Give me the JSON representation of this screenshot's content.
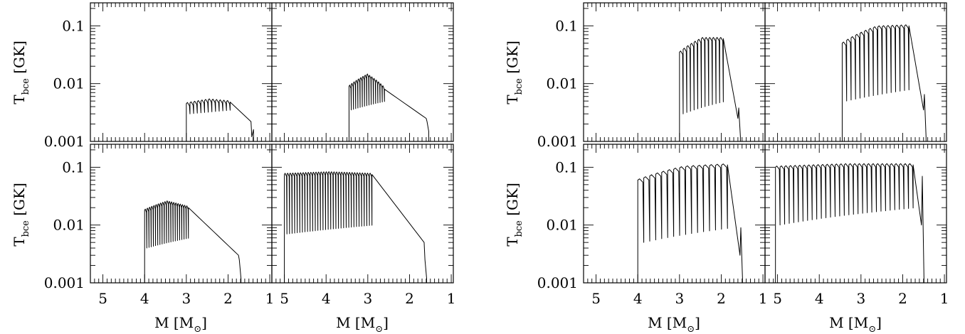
{
  "figure": {
    "y_label_main": "T",
    "y_label_sub": "bce",
    "y_label_unit": "[GK]",
    "x_label_main": "M",
    "x_label_bracket_open": "[M",
    "x_label_bracket_close": "]",
    "x_label_sub_symbol": "⊙",
    "y_tick_labels": [
      "0.1",
      "0.01",
      "0.001"
    ],
    "x_tick_labels": [
      "5",
      "4",
      "3",
      "2",
      "1"
    ],
    "line_color": "#000000"
  },
  "chart_data": [
    {
      "type": "line",
      "ylog": true,
      "ylim": [
        0.001,
        0.25
      ],
      "xlim": [
        5.3,
        0.95
      ],
      "x_reversed": true,
      "start": 3.0,
      "pulses": 12,
      "mid": 1.95,
      "end": 1.45,
      "peak": [
        0.0045,
        0.0052,
        0.0048
      ],
      "floor": [
        0.003,
        0.0035
      ],
      "valley": [
        0.0022,
        0.0016
      ],
      "tail_peak": 0.0012
    },
    {
      "type": "line",
      "ylog": true,
      "ylim": [
        0.001,
        0.25
      ],
      "xlim": [
        5.3,
        0.95
      ],
      "x_reversed": true,
      "start": 3.45,
      "pulses": 16,
      "mid": 2.6,
      "end": 1.6,
      "peak": [
        0.009,
        0.014,
        0.008
      ],
      "floor": [
        0.0035,
        0.005
      ],
      "valley": [
        0.0025,
        0.0015
      ],
      "tail_peak": 0.0022
    },
    {
      "type": "line",
      "ylog": true,
      "ylim": [
        0.001,
        0.25
      ],
      "xlim": [
        5.3,
        0.95
      ],
      "x_reversed": true,
      "start": 3.0,
      "pulses": 12,
      "mid": 1.95,
      "end": 1.6,
      "peak": [
        0.035,
        0.06,
        0.06
      ],
      "floor": [
        0.003,
        0.005
      ],
      "valley": [
        0.0025,
        0.0012
      ],
      "tail_peak": 0.0038
    },
    {
      "type": "line",
      "ylog": true,
      "ylim": [
        0.001,
        0.25
      ],
      "xlim": [
        5.3,
        0.95
      ],
      "x_reversed": true,
      "start": 3.45,
      "pulses": 15,
      "mid": 1.85,
      "end": 1.5,
      "peak": [
        0.05,
        0.095,
        0.1
      ],
      "floor": [
        0.005,
        0.008
      ],
      "valley": [
        0.0035,
        0.0012
      ],
      "tail_peak": 0.0065
    },
    {
      "type": "line",
      "ylog": true,
      "ylim": [
        0.001,
        0.25
      ],
      "xlim": [
        5.3,
        0.95
      ],
      "x_reversed": true,
      "start": 4.0,
      "pulses": 20,
      "mid": 2.95,
      "end": 1.75,
      "peak": [
        0.018,
        0.025,
        0.02
      ],
      "floor": [
        0.004,
        0.006
      ],
      "valley": [
        0.003,
        0.0012
      ],
      "tail_peak": 0.0025
    },
    {
      "type": "line",
      "ylog": true,
      "ylim": [
        0.001,
        0.25
      ],
      "xlim": [
        5.3,
        0.95
      ],
      "x_reversed": true,
      "start": 5.0,
      "pulses": 34,
      "mid": 2.9,
      "end": 1.65,
      "peak": [
        0.075,
        0.08,
        0.075
      ],
      "floor": [
        0.007,
        0.01
      ],
      "valley": [
        0.005,
        0.0012
      ],
      "tail_peak": 0.0025
    },
    {
      "type": "line",
      "ylog": true,
      "ylim": [
        0.001,
        0.25
      ],
      "xlim": [
        5.3,
        0.95
      ],
      "x_reversed": true,
      "start": 4.0,
      "pulses": 15,
      "mid": 1.85,
      "end": 1.55,
      "peak": [
        0.06,
        0.1,
        0.11
      ],
      "floor": [
        0.005,
        0.009
      ],
      "valley": [
        0.003,
        0.0012
      ],
      "tail_peak": 0.009
    },
    {
      "type": "line",
      "ylog": true,
      "ylim": [
        0.001,
        0.25
      ],
      "xlim": [
        5.3,
        0.95
      ],
      "x_reversed": true,
      "start": 5.05,
      "pulses": 30,
      "mid": 1.75,
      "end": 1.55,
      "peak": [
        0.1,
        0.11,
        0.11
      ],
      "floor": [
        0.01,
        0.02
      ],
      "valley": [
        0.01,
        0.0012
      ],
      "tail_peak": 0.07
    }
  ]
}
